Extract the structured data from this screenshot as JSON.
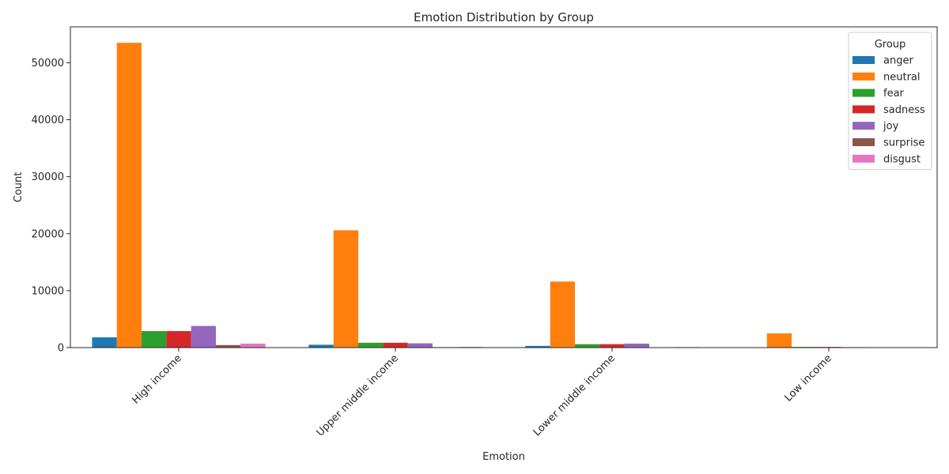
{
  "chart_data": {
    "type": "bar",
    "title": "Emotion Distribution by Group",
    "xlabel": "Emotion",
    "ylabel": "Count",
    "categories": [
      "High income",
      "Upper middle income",
      "Lower middle income",
      "Low income"
    ],
    "ylim": [
      0,
      56300
    ],
    "yticks": [
      0,
      10000,
      20000,
      30000,
      40000,
      50000
    ],
    "grid": false,
    "legend": {
      "title": "Group",
      "placement": "top-right"
    },
    "series": [
      {
        "name": "anger",
        "color": "#1f77b4",
        "values": [
          1800,
          500,
          300,
          40
        ]
      },
      {
        "name": "neutral",
        "color": "#ff7f0e",
        "values": [
          53500,
          20600,
          11600,
          2500
        ]
      },
      {
        "name": "fear",
        "color": "#2ca02c",
        "values": [
          2900,
          850,
          600,
          120
        ]
      },
      {
        "name": "sadness",
        "color": "#d62728",
        "values": [
          2900,
          850,
          600,
          120
        ]
      },
      {
        "name": "joy",
        "color": "#9467bd",
        "values": [
          3800,
          750,
          700,
          80
        ]
      },
      {
        "name": "surprise",
        "color": "#8c564b",
        "values": [
          450,
          80,
          60,
          15
        ]
      },
      {
        "name": "disgust",
        "color": "#e377c2",
        "values": [
          700,
          120,
          90,
          20
        ]
      }
    ]
  }
}
